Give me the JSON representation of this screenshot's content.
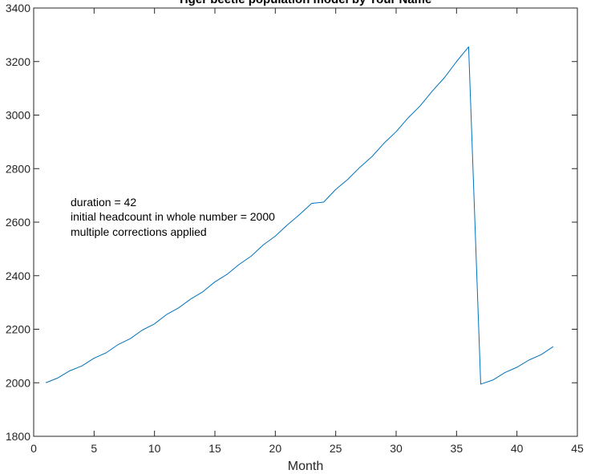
{
  "chart_data": {
    "type": "line",
    "title": "Tiger beetle population model by Your Name",
    "xlabel": "Month",
    "ylabel": "",
    "xlim": [
      0,
      45
    ],
    "ylim": [
      1800,
      3400
    ],
    "xticks": [
      0,
      5,
      10,
      15,
      20,
      25,
      30,
      35,
      40,
      45
    ],
    "yticks": [
      1800,
      2000,
      2200,
      2400,
      2600,
      2800,
      3000,
      3200,
      3400
    ],
    "grid": false,
    "series": [
      {
        "color": "#0072BD",
        "x": [
          1,
          2,
          3,
          4,
          5,
          6,
          7,
          8,
          9,
          10,
          11,
          12,
          13,
          14,
          15,
          16,
          17,
          18,
          19,
          20,
          21,
          22,
          23,
          24,
          25,
          26,
          27,
          28,
          29,
          30,
          31,
          32,
          33,
          34,
          35,
          36,
          37,
          38,
          39,
          40,
          41,
          42,
          43
        ],
        "y": [
          2000,
          2018,
          2045,
          2063,
          2092,
          2112,
          2143,
          2165,
          2197,
          2220,
          2255,
          2280,
          2313,
          2340,
          2377,
          2405,
          2442,
          2473,
          2515,
          2548,
          2590,
          2628,
          2670,
          2675,
          2722,
          2760,
          2805,
          2845,
          2895,
          2938,
          2990,
          3035,
          3090,
          3140,
          3200,
          3255,
          1995,
          2010,
          2038,
          2058,
          2085,
          2105,
          2135
        ]
      }
    ],
    "annotations": [
      "duration = 42",
      "initial headcount in whole number = 2000",
      "multiple corrections applied"
    ]
  }
}
